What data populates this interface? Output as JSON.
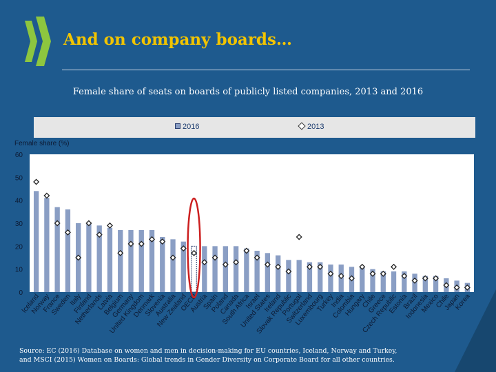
{
  "slide": {
    "title": "And on company boards…",
    "subtitle": "Female share of seats on boards of publicly listed companies, 2013 and 2016",
    "source_line1": "Source: EC (2016) Database on women and men in decision-making for EU countries, Iceland, Norway and Turkey,",
    "source_line2": "and MSCI (2015) Women on Boards: Global trends in Gender Diversity on Corporate Board for all other countries.",
    "colors": {
      "background": "#1e5a8e",
      "title": "#f2c400",
      "logo": "#8dc63f",
      "highlight_ring": "#cc1f1f"
    }
  },
  "chart_data": {
    "type": "bar",
    "ylabel": "Female share (%)",
    "ylim": [
      0,
      60
    ],
    "yticks": [
      0,
      10,
      20,
      30,
      40,
      50,
      60
    ],
    "legend": {
      "placement": "top",
      "entries": [
        "2016",
        "2013"
      ]
    },
    "categories": [
      "Iceland",
      "Norway",
      "France",
      "Sweden",
      "Italy",
      "Finland",
      "Netherlands",
      "Latvia",
      "Belgium",
      "Germany",
      "United Kingdom",
      "Denmark",
      "Slovenia",
      "Australia",
      "New Zealand",
      "OECD",
      "Austria",
      "Spain",
      "Poland",
      "Canada",
      "South Africa",
      "Israel",
      "United States",
      "Ireland",
      "Slovak Republic",
      "Portugal",
      "Switzerland",
      "Luxembourg",
      "Turkey",
      "India",
      "Colombia",
      "Hungary",
      "Chile",
      "Greece",
      "Czech Republic",
      "Estonia",
      "Brazil",
      "Indonesia",
      "Mexico",
      "Chile",
      "Japan",
      "Korea"
    ],
    "highlight_category": "OECD",
    "series": [
      {
        "name": "2016",
        "values": [
          44,
          41,
          37,
          36,
          30,
          30,
          29,
          28,
          27,
          27,
          27,
          27,
          24,
          23,
          22,
          20,
          20,
          20,
          20,
          20,
          19,
          18,
          17,
          16,
          14,
          14,
          13,
          13,
          12,
          12,
          11,
          11,
          10,
          9,
          9,
          9,
          8,
          7,
          7,
          6,
          5,
          4
        ],
        "color": "#8a9ec4"
      },
      {
        "name": "2013",
        "values": [
          48,
          42,
          30,
          26,
          15,
          30,
          25,
          29,
          17,
          21,
          21,
          23,
          22,
          15,
          19,
          17,
          13,
          15,
          12,
          13,
          18,
          15,
          12,
          11,
          9,
          24,
          11,
          11,
          8,
          7,
          6,
          11,
          8,
          8,
          11,
          7,
          5,
          6,
          6,
          3,
          2,
          2
        ],
        "color": "#ffffff"
      }
    ]
  }
}
